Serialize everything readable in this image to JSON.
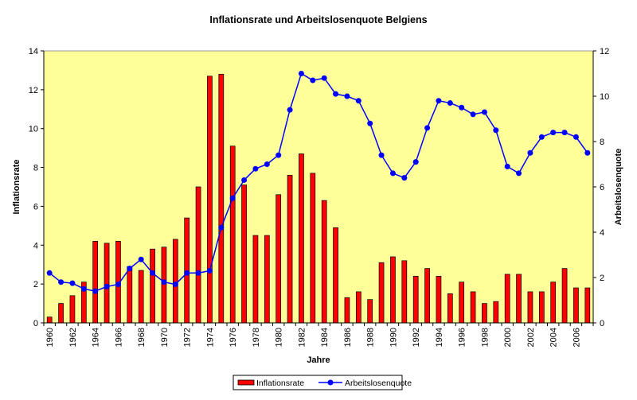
{
  "chart_data": {
    "type": "bar+line",
    "title": "Inflationsrate und Arbeitslosenquote Belgiens",
    "xlabel": "Jahre",
    "ylabel": "Inflationsrate",
    "y2label": "Arbeitslosenquote",
    "ylim": [
      0,
      14
    ],
    "y2lim": [
      0,
      12
    ],
    "yticks": [
      0,
      2,
      4,
      6,
      8,
      10,
      12,
      14
    ],
    "y2ticks": [
      0,
      2,
      4,
      6,
      8,
      10,
      12
    ],
    "grid": false,
    "legend_placement": "bottom",
    "plot_background": "#FFFF99",
    "categories": [
      1960,
      1961,
      1962,
      1963,
      1964,
      1965,
      1966,
      1967,
      1968,
      1969,
      1970,
      1971,
      1972,
      1973,
      1974,
      1975,
      1976,
      1977,
      1978,
      1979,
      1980,
      1981,
      1982,
      1983,
      1984,
      1985,
      1986,
      1987,
      1988,
      1989,
      1990,
      1991,
      1992,
      1993,
      1994,
      1995,
      1996,
      1997,
      1998,
      1999,
      2000,
      2001,
      2002,
      2003,
      2004,
      2005,
      2006,
      2007
    ],
    "series": [
      {
        "name": "Inflationsrate",
        "type": "bar",
        "axis": "left",
        "color": "#FF0000",
        "values": [
          0.3,
          1.0,
          1.4,
          2.1,
          4.2,
          4.1,
          4.2,
          2.9,
          2.7,
          3.8,
          3.9,
          4.3,
          5.4,
          7.0,
          12.7,
          12.8,
          9.1,
          7.1,
          4.5,
          4.5,
          6.6,
          7.6,
          8.7,
          7.7,
          6.3,
          4.9,
          1.3,
          1.6,
          1.2,
          3.1,
          3.4,
          3.2,
          2.4,
          2.8,
          2.4,
          1.5,
          2.1,
          1.6,
          1.0,
          1.1,
          2.5,
          2.5,
          1.6,
          1.6,
          2.1,
          2.8,
          1.8,
          1.8
        ]
      },
      {
        "name": "Arbeitslosenquote",
        "type": "line",
        "axis": "right",
        "color": "#0000FF",
        "values": [
          2.2,
          1.8,
          1.75,
          1.5,
          1.4,
          1.6,
          1.7,
          2.4,
          2.8,
          2.2,
          1.8,
          1.7,
          2.2,
          2.2,
          2.3,
          4.2,
          5.5,
          6.3,
          6.8,
          7.0,
          7.4,
          9.4,
          11.0,
          10.7,
          10.8,
          10.1,
          10.0,
          9.8,
          8.8,
          7.4,
          6.6,
          6.4,
          7.1,
          8.6,
          9.8,
          9.7,
          9.5,
          9.2,
          9.3,
          8.5,
          6.9,
          6.6,
          7.5,
          8.2,
          8.4,
          8.4,
          8.2,
          7.5
        ]
      }
    ]
  }
}
